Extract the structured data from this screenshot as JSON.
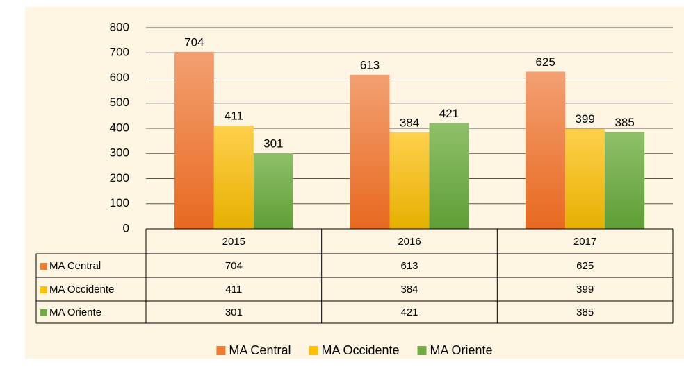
{
  "chart_data": {
    "type": "bar",
    "categories": [
      "2015",
      "2016",
      "2017"
    ],
    "series": [
      {
        "name": "MA Central",
        "color": "#ed7d31",
        "values": [
          704,
          613,
          625
        ]
      },
      {
        "name": "MA Occidente",
        "color": "#ffc000",
        "values": [
          411,
          384,
          399
        ]
      },
      {
        "name": "MA Oriente",
        "color": "#70ad47",
        "values": [
          301,
          421,
          385
        ]
      }
    ],
    "ylim": [
      0,
      800
    ],
    "yticks": [
      0,
      100,
      200,
      300,
      400,
      500,
      600,
      700,
      800
    ],
    "grid": true,
    "data_table": true,
    "legend": "bottom"
  }
}
